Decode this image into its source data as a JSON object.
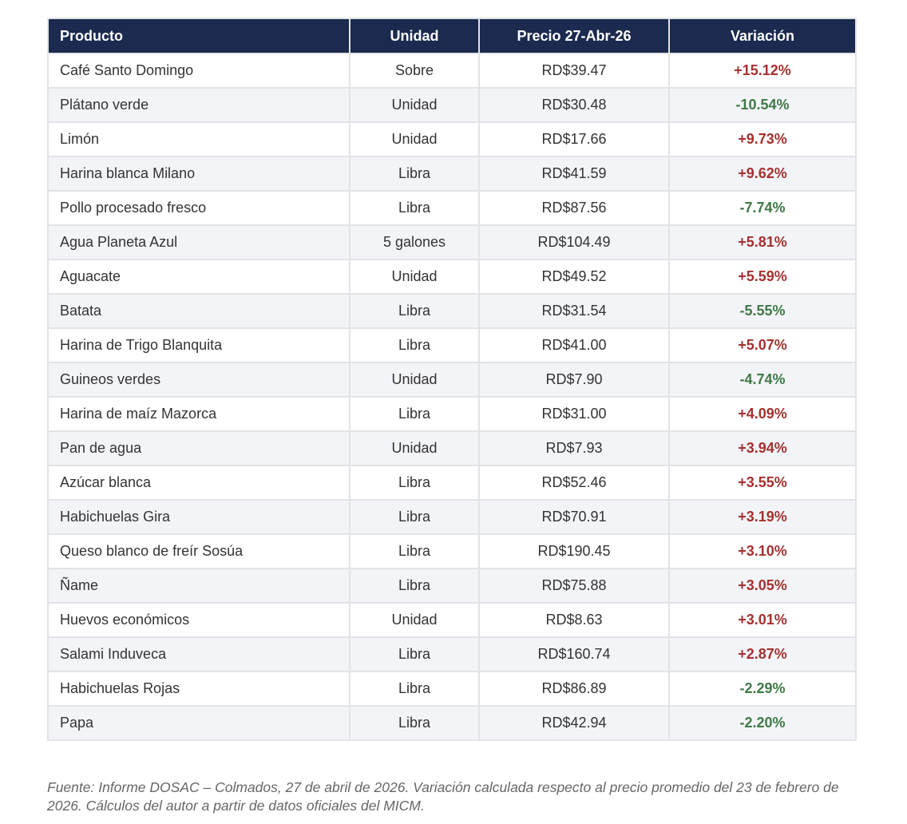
{
  "table": {
    "headers": [
      "Producto",
      "Unidad",
      "Precio 27-Abr-26",
      "Variación"
    ],
    "rows": [
      {
        "producto": "Café Santo Domingo",
        "unidad": "Sobre",
        "precio": "RD$39.47",
        "variacion": "+15.12%",
        "dir": "up"
      },
      {
        "producto": "Plátano verde",
        "unidad": "Unidad",
        "precio": "RD$30.48",
        "variacion": "-10.54%",
        "dir": "down"
      },
      {
        "producto": "Limón",
        "unidad": "Unidad",
        "precio": "RD$17.66",
        "variacion": "+9.73%",
        "dir": "up"
      },
      {
        "producto": "Harina blanca Milano",
        "unidad": "Libra",
        "precio": "RD$41.59",
        "variacion": "+9.62%",
        "dir": "up"
      },
      {
        "producto": "Pollo procesado fresco",
        "unidad": "Libra",
        "precio": "RD$87.56",
        "variacion": "-7.74%",
        "dir": "down"
      },
      {
        "producto": "Agua Planeta Azul",
        "unidad": "5 galones",
        "precio": "RD$104.49",
        "variacion": "+5.81%",
        "dir": "up"
      },
      {
        "producto": "Aguacate",
        "unidad": "Unidad",
        "precio": "RD$49.52",
        "variacion": "+5.59%",
        "dir": "up"
      },
      {
        "producto": "Batata",
        "unidad": "Libra",
        "precio": "RD$31.54",
        "variacion": "-5.55%",
        "dir": "down"
      },
      {
        "producto": "Harina de Trigo Blanquita",
        "unidad": "Libra",
        "precio": "RD$41.00",
        "variacion": "+5.07%",
        "dir": "up"
      },
      {
        "producto": "Guineos verdes",
        "unidad": "Unidad",
        "precio": "RD$7.90",
        "variacion": "-4.74%",
        "dir": "down"
      },
      {
        "producto": "Harina de maíz Mazorca",
        "unidad": "Libra",
        "precio": "RD$31.00",
        "variacion": "+4.09%",
        "dir": "up"
      },
      {
        "producto": "Pan de agua",
        "unidad": "Unidad",
        "precio": "RD$7.93",
        "variacion": "+3.94%",
        "dir": "up"
      },
      {
        "producto": "Azúcar blanca",
        "unidad": "Libra",
        "precio": "RD$52.46",
        "variacion": "+3.55%",
        "dir": "up"
      },
      {
        "producto": "Habichuelas Gira",
        "unidad": "Libra",
        "precio": "RD$70.91",
        "variacion": "+3.19%",
        "dir": "up"
      },
      {
        "producto": "Queso blanco de freír Sosúa",
        "unidad": "Libra",
        "precio": "RD$190.45",
        "variacion": "+3.10%",
        "dir": "up"
      },
      {
        "producto": "Ñame",
        "unidad": "Libra",
        "precio": "RD$75.88",
        "variacion": "+3.05%",
        "dir": "up"
      },
      {
        "producto": "Huevos económicos",
        "unidad": "Unidad",
        "precio": "RD$8.63",
        "variacion": "+3.01%",
        "dir": "up"
      },
      {
        "producto": "Salami Induveca",
        "unidad": "Libra",
        "precio": "RD$160.74",
        "variacion": "+2.87%",
        "dir": "up"
      },
      {
        "producto": "Habichuelas Rojas",
        "unidad": "Libra",
        "precio": "RD$86.89",
        "variacion": "-2.29%",
        "dir": "down"
      },
      {
        "producto": "Papa",
        "unidad": "Libra",
        "precio": "RD$42.94",
        "variacion": "-2.20%",
        "dir": "down"
      }
    ]
  },
  "footnote": "Fuente: Informe DOSAC – Colmados, 27 de abril de 2026. Variación calculada respecto al precio promedio del 23 de febrero de 2026. Cálculos del autor a partir de datos oficiales del MICM.",
  "colors": {
    "header_bg": "#1b2a4e",
    "up": "#a3312f",
    "down": "#3f7a45"
  }
}
